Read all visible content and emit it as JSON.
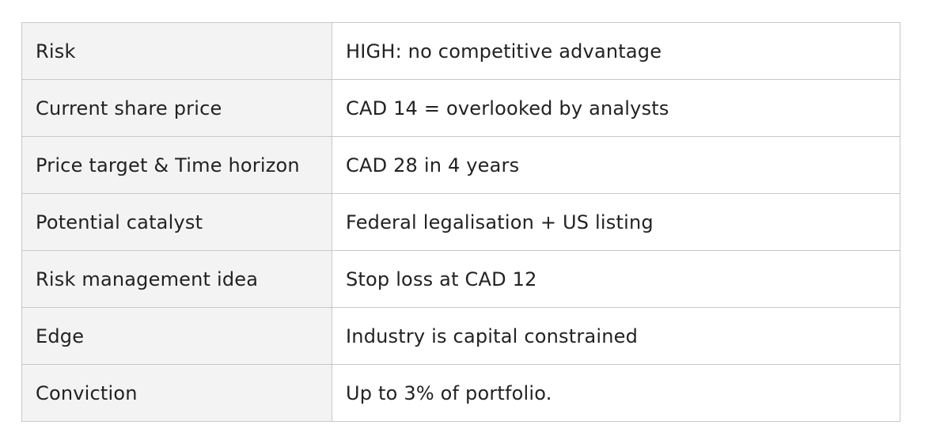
{
  "rows": [
    {
      "label": "Risk",
      "value": "HIGH: no competitive advantage"
    },
    {
      "label": "Current share price",
      "value": "CAD 14 = overlooked by analysts"
    },
    {
      "label": "Price target & Time horizon",
      "value": "CAD 28 in 4 years"
    },
    {
      "label": "Potential catalyst",
      "value": "Federal legalisation + US listing"
    },
    {
      "label": "Risk management idea",
      "value": "Stop loss at CAD 12"
    },
    {
      "label": "Edge",
      "value": "Industry is capital constrained"
    },
    {
      "label": "Conviction",
      "value": "Up to 3% of portfolio."
    }
  ]
}
